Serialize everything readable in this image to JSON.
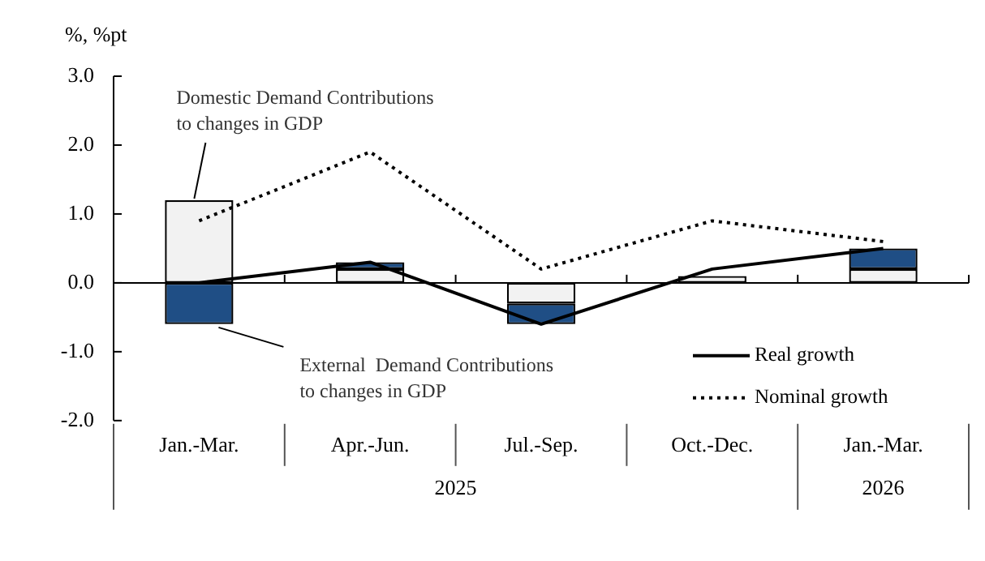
{
  "chart_data": {
    "type": "bar",
    "ylabel": "%, %pt",
    "stacked": true,
    "legend": "bottom right",
    "categories": [
      "Jan.-Mar.",
      "Apr.-Jun.",
      "Jul.-Sep.",
      "Oct.-Dec.",
      "Jan.-Mar."
    ],
    "series": [
      {
        "name": "Domestic Demand Contributions to changes in GDP",
        "color": "#f2f2f2",
        "values": [
          1.2,
          0.2,
          -0.3,
          0.1,
          0.2
        ]
      },
      {
        "name": "External  Demand Contributions to changes in GDP",
        "color": "#1f4e85",
        "values": [
          -0.6,
          0.1,
          -0.3,
          0.0,
          0.3
        ]
      },
      {
        "type": "line",
        "name": "Real growth",
        "color": "#000000",
        "line_style": "solid",
        "values": [
          0.0,
          0.3,
          -0.6,
          0.2,
          0.5
        ]
      },
      {
        "type": "line",
        "name": "Nominal growth",
        "color": "#000000",
        "line_style": "dotted",
        "values": [
          0.9,
          1.9,
          0.2,
          0.9,
          0.6
        ]
      }
    ],
    "ylim": [
      -2,
      3
    ],
    "yticks": [
      {
        "value": -2,
        "label": "-2.0"
      },
      {
        "value": -1,
        "label": "-1.0"
      },
      {
        "value": 0,
        "label": "0.0"
      },
      {
        "value": 1,
        "label": "1.0"
      },
      {
        "value": 2,
        "label": "2.0"
      },
      {
        "value": 3,
        "label": "3.0"
      }
    ],
    "annotations": [
      "2025",
      "2026"
    ]
  }
}
